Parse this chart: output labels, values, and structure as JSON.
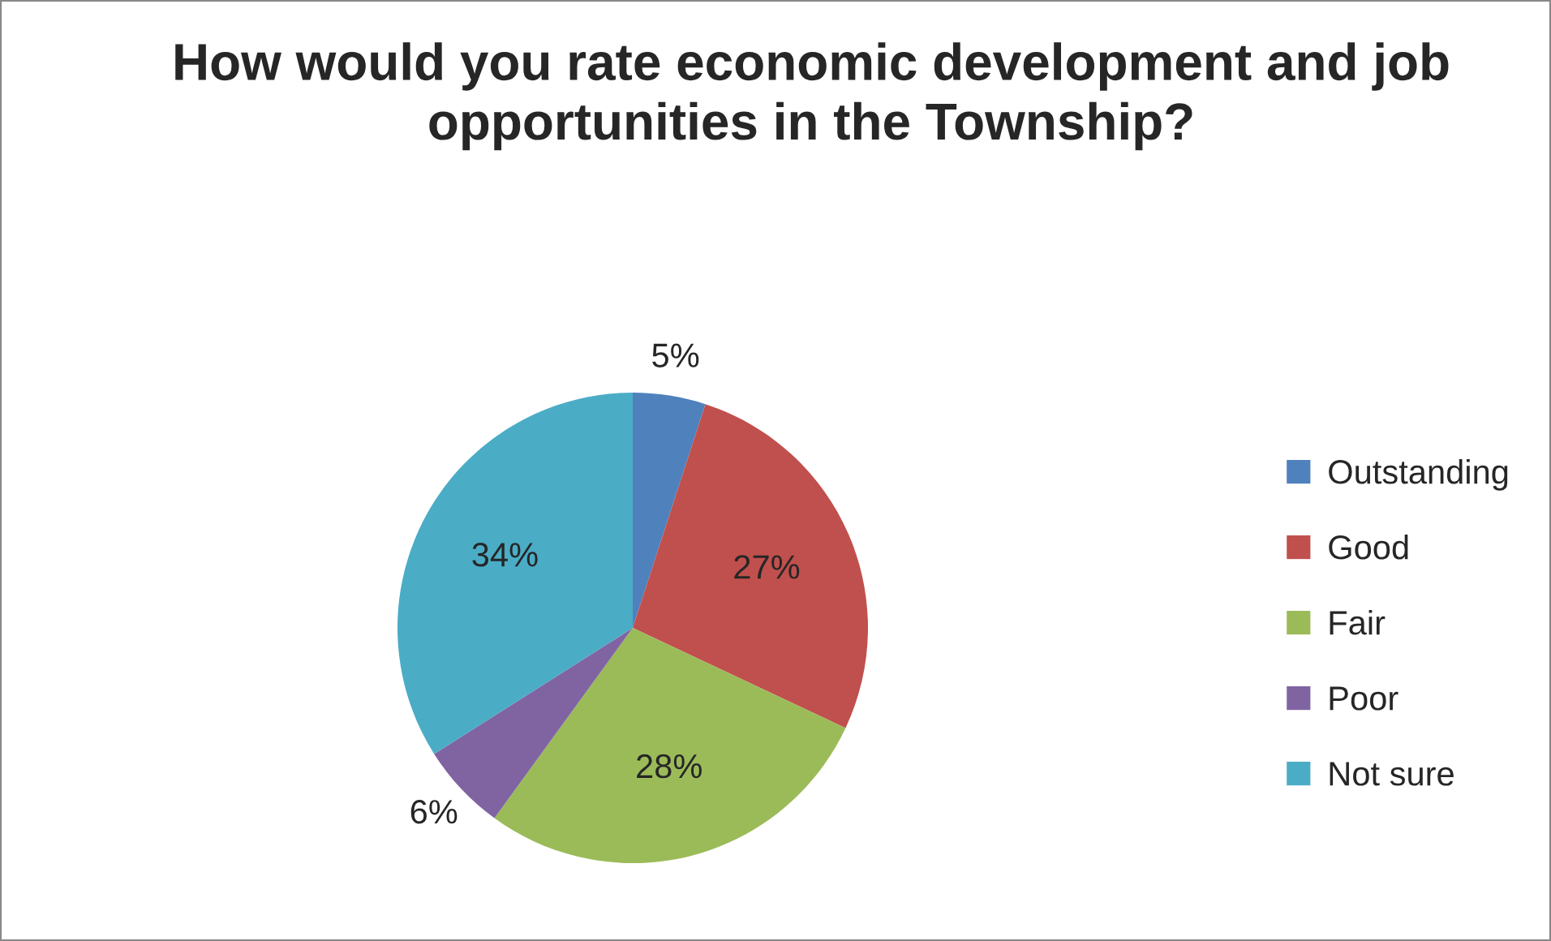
{
  "chart_data": {
    "type": "pie",
    "title": "How would you rate economic development and job opportunities in the Township?",
    "categories": [
      "Outstanding",
      "Good",
      "Fair",
      "Poor",
      "Not sure"
    ],
    "values": [
      5,
      27,
      28,
      6,
      34
    ],
    "colors": [
      "#4f81bd",
      "#c0504d",
      "#9bbb59",
      "#8064a2",
      "#4bacc6"
    ],
    "value_labels": [
      "5%",
      "27%",
      "28%",
      "6%",
      "34%"
    ],
    "legend": "right"
  }
}
